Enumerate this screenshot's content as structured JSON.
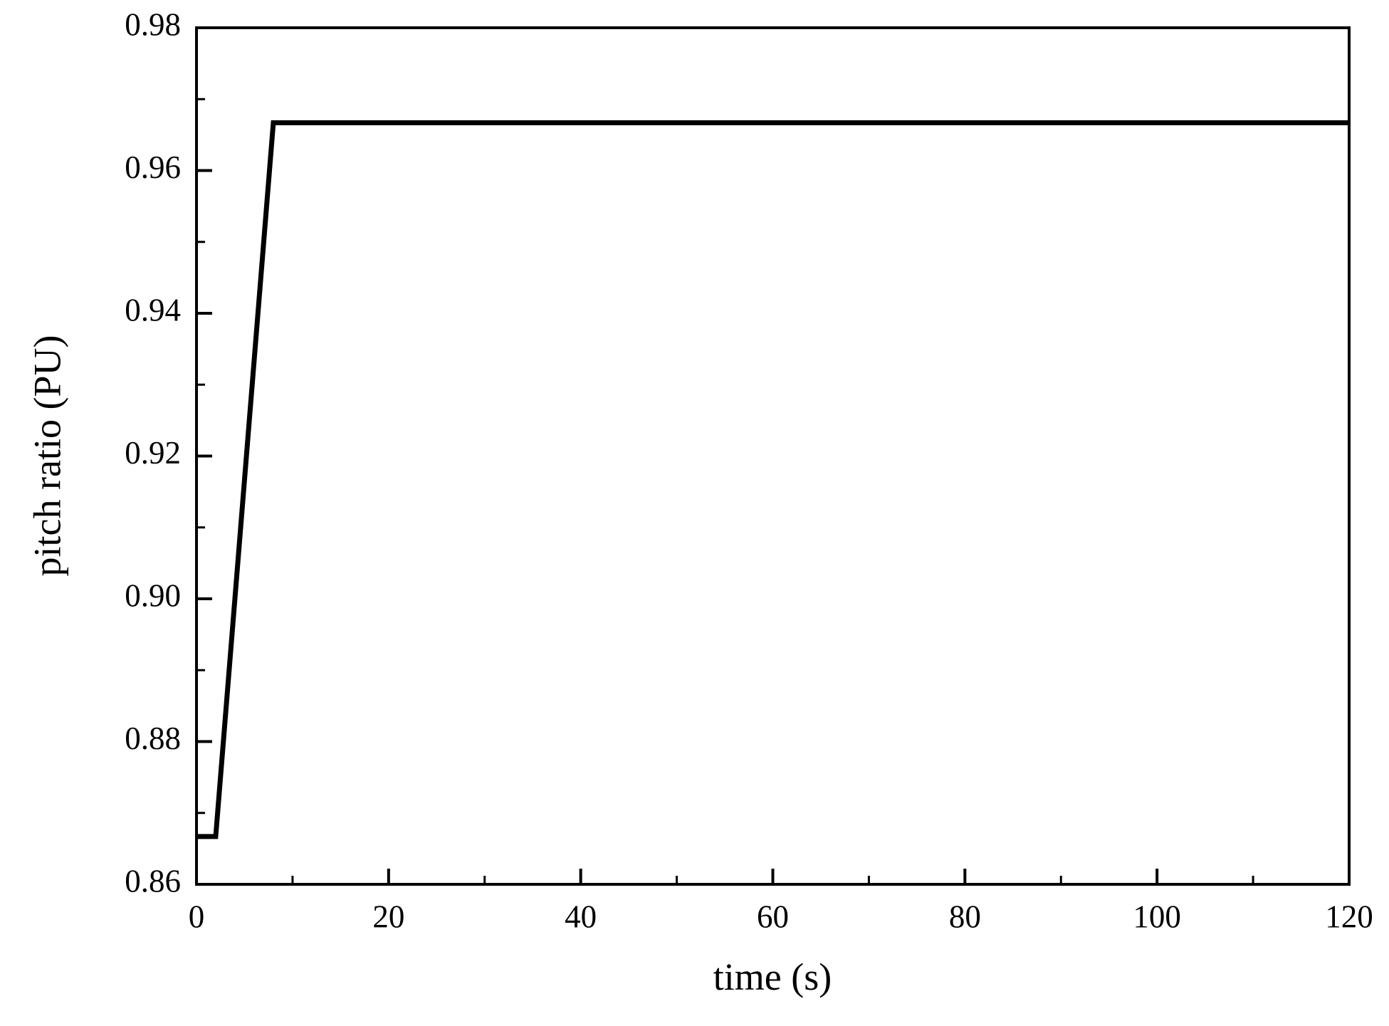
{
  "chart_data": {
    "type": "line",
    "x_label": "time (s)",
    "y_label": "pitch ratio (PU)",
    "xlim": [
      0,
      120
    ],
    "xticks": [
      0,
      20,
      40,
      60,
      80,
      100,
      120
    ],
    "ylim": [
      0.86,
      0.98
    ],
    "yticks": [
      0.86,
      0.88,
      {
        "value": 0.9,
        "label": "0.90"
      },
      0.92,
      0.94,
      0.96,
      0.98
    ],
    "grid": false,
    "series": [
      {
        "color": "#000000",
        "x": [
          0,
          2,
          8,
          120
        ],
        "values": [
          0.8667,
          0.8667,
          0.9667,
          0.9667
        ]
      }
    ]
  }
}
